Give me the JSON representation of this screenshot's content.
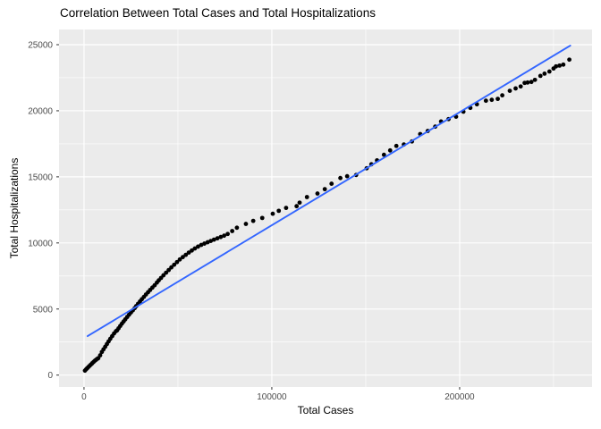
{
  "chart_data": {
    "type": "scatter",
    "title": "Correlation Between Total Cases and Total Hospitalizations",
    "xlabel": "Total Cases",
    "ylabel": "Total Hospitalizations",
    "x_ticks": [
      0,
      100000,
      200000
    ],
    "y_ticks": [
      0,
      5000,
      10000,
      15000,
      20000,
      25000
    ],
    "x_minor_gridlines": [
      50000,
      150000,
      250000
    ],
    "y_minor_gridlines": [
      2500,
      7500,
      12500,
      17500,
      22500
    ],
    "xlim": [
      -13300,
      270500
    ],
    "ylim": [
      -900,
      26150
    ],
    "grid": true,
    "legend_position": "none",
    "colors": {
      "panel_background": "#EBEBEB",
      "grid_major": "#FFFFFF",
      "grid_minor": "#FFFFFF",
      "point": "#000000",
      "trend_line": "#3366FF",
      "tick_text": "#4D4D4D",
      "tick_mark": "#333333"
    },
    "series": [
      {
        "name": "observations",
        "kind": "points",
        "points": [
          [
            500,
            340
          ],
          [
            1100,
            430
          ],
          [
            1700,
            520
          ],
          [
            2300,
            610
          ],
          [
            3000,
            700
          ],
          [
            3700,
            800
          ],
          [
            4400,
            900
          ],
          [
            5100,
            1000
          ],
          [
            5800,
            1090
          ],
          [
            6500,
            1170
          ],
          [
            7200,
            1240
          ],
          [
            7600,
            1280
          ],
          [
            8600,
            1500
          ],
          [
            9500,
            1750
          ],
          [
            10400,
            1950
          ],
          [
            11300,
            2150
          ],
          [
            12200,
            2350
          ],
          [
            13100,
            2550
          ],
          [
            14000,
            2750
          ],
          [
            15000,
            2950
          ],
          [
            16000,
            3150
          ],
          [
            17000,
            3320
          ],
          [
            17600,
            3380
          ],
          [
            18400,
            3540
          ],
          [
            19300,
            3720
          ],
          [
            20200,
            3900
          ],
          [
            21100,
            4060
          ],
          [
            22000,
            4220
          ],
          [
            23000,
            4400
          ],
          [
            24000,
            4570
          ],
          [
            25000,
            4740
          ],
          [
            26000,
            4900
          ],
          [
            27000,
            5070
          ],
          [
            27800,
            5220
          ],
          [
            28800,
            5400
          ],
          [
            29800,
            5570
          ],
          [
            30800,
            5740
          ],
          [
            31900,
            5920
          ],
          [
            33000,
            6100
          ],
          [
            34100,
            6270
          ],
          [
            35200,
            6440
          ],
          [
            36400,
            6620
          ],
          [
            37600,
            6800
          ],
          [
            38800,
            7000
          ],
          [
            39800,
            7170
          ],
          [
            41000,
            7350
          ],
          [
            42300,
            7550
          ],
          [
            43700,
            7750
          ],
          [
            45100,
            7950
          ],
          [
            46500,
            8150
          ],
          [
            48000,
            8350
          ],
          [
            49500,
            8550
          ],
          [
            51000,
            8750
          ],
          [
            52600,
            8930
          ],
          [
            54200,
            9100
          ],
          [
            55800,
            9270
          ],
          [
            57400,
            9430
          ],
          [
            59000,
            9580
          ],
          [
            60700,
            9720
          ],
          [
            62400,
            9850
          ],
          [
            64100,
            9950
          ],
          [
            65800,
            10050
          ],
          [
            67500,
            10150
          ],
          [
            69200,
            10250
          ],
          [
            71000,
            10350
          ],
          [
            72800,
            10450
          ],
          [
            74600,
            10550
          ],
          [
            76500,
            10680
          ],
          [
            78900,
            10900
          ],
          [
            81400,
            11150
          ],
          [
            86200,
            11440
          ],
          [
            90100,
            11670
          ],
          [
            94900,
            11890
          ],
          [
            100500,
            12210
          ],
          [
            103700,
            12430
          ],
          [
            107600,
            12650
          ],
          [
            113200,
            12780
          ],
          [
            114800,
            13050
          ],
          [
            118700,
            13470
          ],
          [
            124300,
            13740
          ],
          [
            128200,
            14070
          ],
          [
            131800,
            14480
          ],
          [
            136500,
            14910
          ],
          [
            140100,
            15050
          ],
          [
            144900,
            15140
          ],
          [
            150500,
            15650
          ],
          [
            153000,
            15950
          ],
          [
            156000,
            16250
          ],
          [
            159700,
            16670
          ],
          [
            163000,
            17000
          ],
          [
            166300,
            17340
          ],
          [
            170300,
            17450
          ],
          [
            174600,
            17680
          ],
          [
            179000,
            18240
          ],
          [
            183000,
            18470
          ],
          [
            187000,
            18800
          ],
          [
            190100,
            19190
          ],
          [
            194100,
            19370
          ],
          [
            198100,
            19550
          ],
          [
            202000,
            19930
          ],
          [
            205700,
            20220
          ],
          [
            209200,
            20490
          ],
          [
            214000,
            20760
          ],
          [
            217100,
            20830
          ],
          [
            220300,
            20900
          ],
          [
            222700,
            21170
          ],
          [
            226700,
            21510
          ],
          [
            229800,
            21690
          ],
          [
            232500,
            21840
          ],
          [
            234600,
            22110
          ],
          [
            236200,
            22140
          ],
          [
            238200,
            22180
          ],
          [
            240100,
            22340
          ],
          [
            243000,
            22640
          ],
          [
            245200,
            22810
          ],
          [
            247800,
            22970
          ],
          [
            250000,
            23200
          ],
          [
            251300,
            23360
          ],
          [
            253200,
            23420
          ],
          [
            255200,
            23490
          ],
          [
            258400,
            23870
          ]
        ]
      },
      {
        "name": "linear-fit",
        "kind": "line",
        "points": [
          [
            1900,
            2950
          ],
          [
            258900,
            24930
          ]
        ]
      }
    ]
  }
}
